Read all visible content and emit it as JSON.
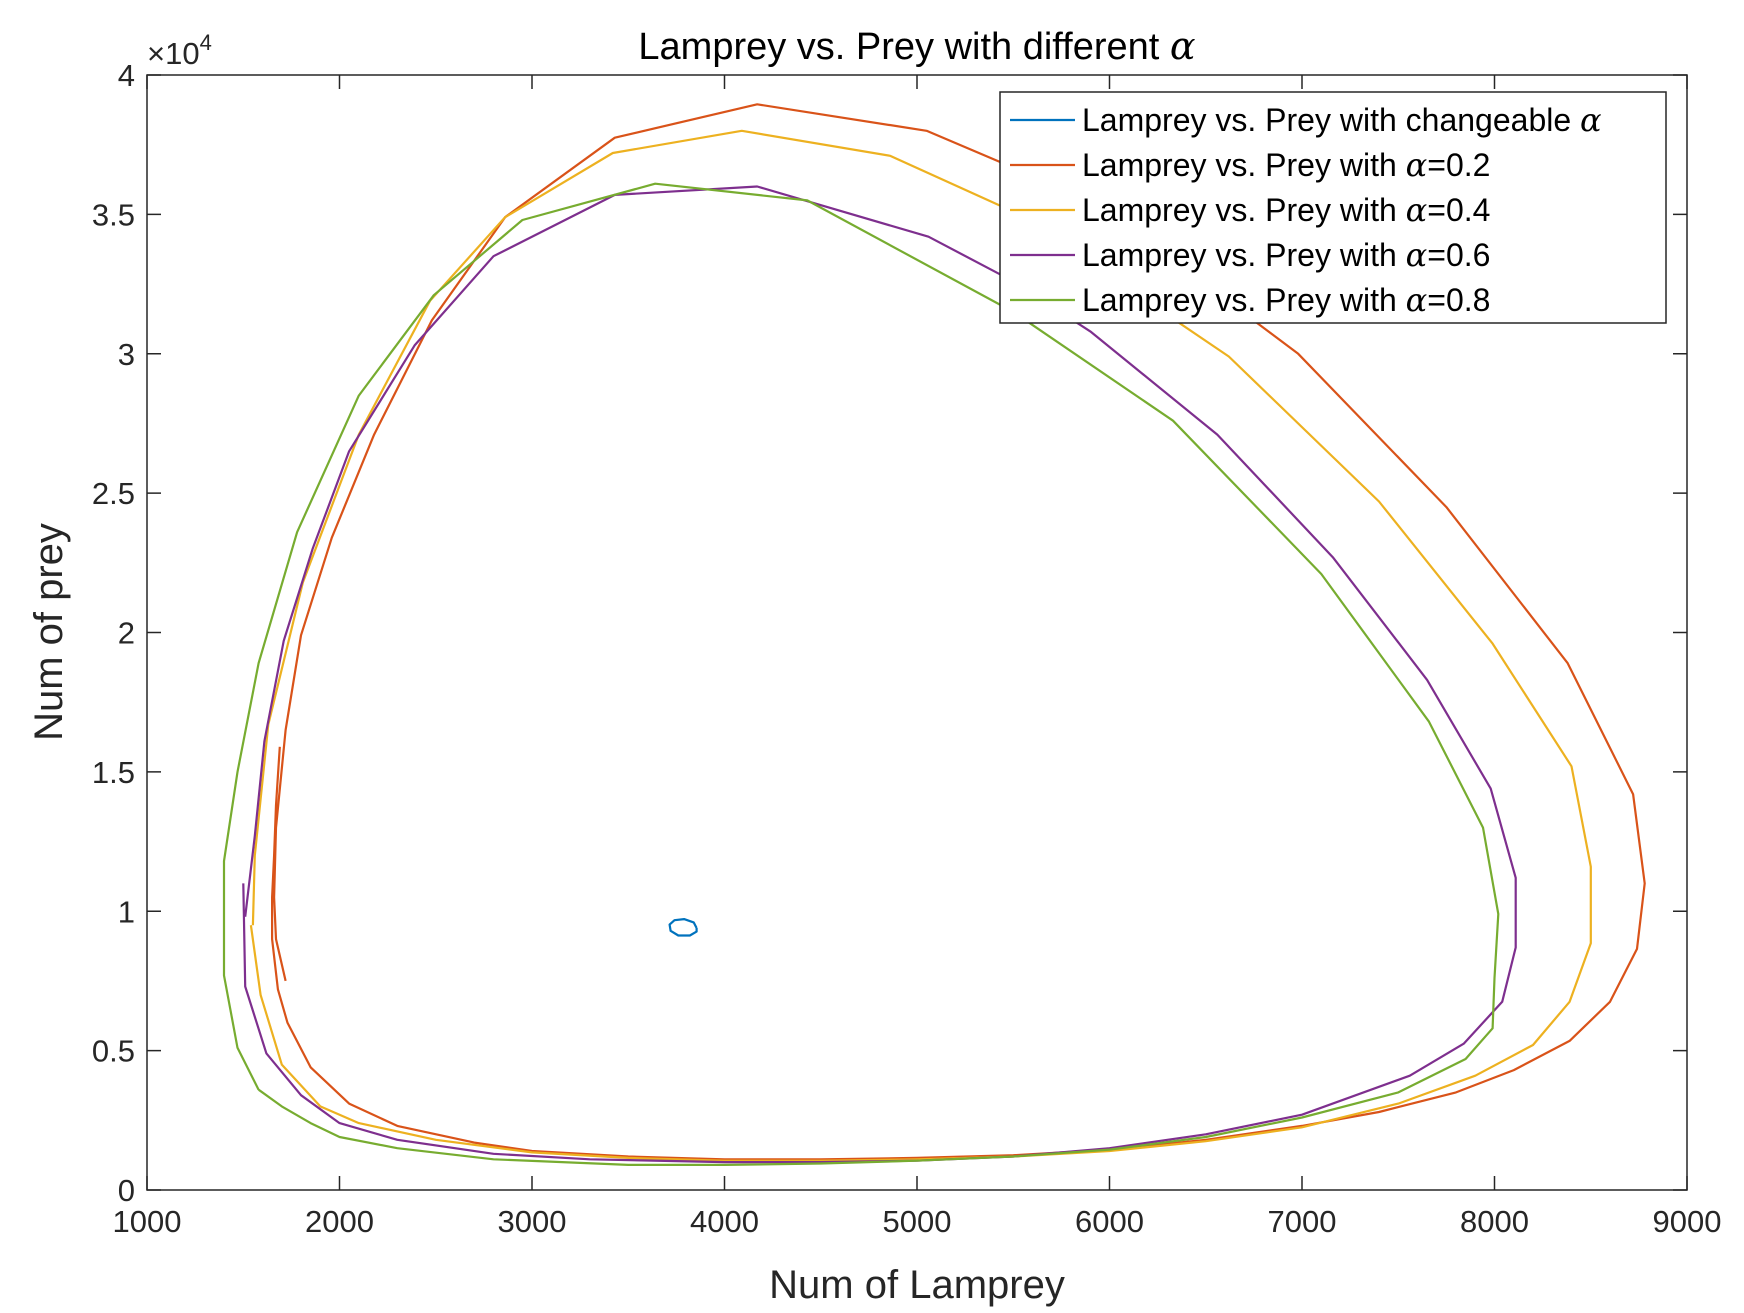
{
  "chart_data": {
    "type": "line",
    "title": "Lamprey vs. Prey with different α",
    "title_parts": {
      "text": "Lamprey vs. Prey with different ",
      "symbol": "α"
    },
    "xlabel": "Num of Lamprey",
    "ylabel": "Num of prey",
    "xlim": [
      1000,
      9000
    ],
    "ylim": [
      0,
      40000
    ],
    "y_exponent_label": {
      "prefix": "×10",
      "power": "4"
    },
    "xticks": [
      1000,
      2000,
      3000,
      4000,
      5000,
      6000,
      7000,
      8000,
      9000
    ],
    "xtick_labels": [
      "1000",
      "2000",
      "3000",
      "4000",
      "5000",
      "6000",
      "7000",
      "8000",
      "9000"
    ],
    "yticks": [
      0,
      5000,
      10000,
      15000,
      20000,
      25000,
      30000,
      35000,
      40000
    ],
    "ytick_labels": [
      "0",
      "0.5",
      "1",
      "1.5",
      "2",
      "2.5",
      "3",
      "3.5",
      "4"
    ],
    "grid": false,
    "legend_position": "top-right",
    "series": [
      {
        "name": "Lamprey vs. Prey with changeable α",
        "label_text": "Lamprey vs. Prey with changeable ",
        "label_symbol": "α",
        "label_suffix": "",
        "color": "#0072BD",
        "points": [
          [
            3855,
            9400
          ],
          [
            3840,
            9600
          ],
          [
            3790,
            9720
          ],
          [
            3740,
            9680
          ],
          [
            3715,
            9520
          ],
          [
            3720,
            9300
          ],
          [
            3760,
            9130
          ],
          [
            3820,
            9130
          ],
          [
            3855,
            9270
          ],
          [
            3855,
            9400
          ]
        ]
      },
      {
        "name": "Lamprey vs. Prey with α=0.2",
        "label_text": "Lamprey vs. Prey with ",
        "label_symbol": "α",
        "label_suffix": "=0.2",
        "color": "#D95319",
        "points": [
          [
            1690,
            15900
          ],
          [
            1670,
            13800
          ],
          [
            1660,
            12000
          ],
          [
            1650,
            10500
          ],
          [
            1650,
            9000
          ],
          [
            1680,
            7200
          ],
          [
            1730,
            6000
          ],
          [
            1850,
            4400
          ],
          [
            2050,
            3100
          ],
          [
            2300,
            2300
          ],
          [
            2700,
            1700
          ],
          [
            3000,
            1400
          ],
          [
            3500,
            1200
          ],
          [
            4000,
            1100
          ],
          [
            4500,
            1100
          ],
          [
            5000,
            1150
          ],
          [
            5500,
            1250
          ],
          [
            6000,
            1450
          ],
          [
            6500,
            1800
          ],
          [
            7000,
            2300
          ],
          [
            7400,
            2800
          ],
          [
            7800,
            3500
          ],
          [
            8100,
            4300
          ],
          [
            8390,
            5350
          ],
          [
            8600,
            6750
          ],
          [
            8740,
            8650
          ],
          [
            8780,
            11000
          ],
          [
            8720,
            14200
          ],
          [
            8380,
            18900
          ],
          [
            7750,
            24500
          ],
          [
            6980,
            30000
          ],
          [
            6400,
            33000
          ],
          [
            5900,
            35500
          ],
          [
            5050,
            38000
          ],
          [
            4170,
            38950
          ],
          [
            3430,
            37750
          ],
          [
            2860,
            34900
          ],
          [
            2480,
            31200
          ],
          [
            2180,
            27100
          ],
          [
            1960,
            23400
          ],
          [
            1800,
            19900
          ],
          [
            1720,
            16500
          ],
          [
            1670,
            13000
          ],
          [
            1660,
            10500
          ],
          [
            1670,
            9000
          ],
          [
            1720,
            7500
          ]
        ]
      },
      {
        "name": "Lamprey vs. Prey with α=0.4",
        "label_text": "Lamprey vs. Prey with ",
        "label_symbol": "α",
        "label_suffix": "=0.4",
        "color": "#EDB120",
        "points": [
          [
            1540,
            9500
          ],
          [
            1590,
            7000
          ],
          [
            1700,
            4500
          ],
          [
            1900,
            3000
          ],
          [
            2100,
            2400
          ],
          [
            2500,
            1800
          ],
          [
            3000,
            1350
          ],
          [
            3500,
            1150
          ],
          [
            4000,
            1050
          ],
          [
            4500,
            1050
          ],
          [
            5000,
            1100
          ],
          [
            5500,
            1200
          ],
          [
            6000,
            1400
          ],
          [
            6500,
            1750
          ],
          [
            7000,
            2250
          ],
          [
            7500,
            3100
          ],
          [
            7900,
            4100
          ],
          [
            8200,
            5200
          ],
          [
            8390,
            6750
          ],
          [
            8500,
            8850
          ],
          [
            8500,
            11600
          ],
          [
            8400,
            15200
          ],
          [
            7990,
            19600
          ],
          [
            7400,
            24700
          ],
          [
            6620,
            29900
          ],
          [
            6000,
            32800
          ],
          [
            5500,
            35100
          ],
          [
            4860,
            37100
          ],
          [
            4090,
            38000
          ],
          [
            3420,
            37200
          ],
          [
            2860,
            34900
          ],
          [
            2470,
            31900
          ],
          [
            2100,
            27100
          ],
          [
            1810,
            21800
          ],
          [
            1630,
            16700
          ],
          [
            1560,
            12000
          ],
          [
            1550,
            9500
          ]
        ]
      },
      {
        "name": "Lamprey vs. Prey with α=0.6",
        "label_text": "Lamprey vs. Prey with ",
        "label_symbol": "α",
        "label_suffix": "=0.6",
        "color": "#7E2F8E",
        "points": [
          [
            1500,
            11000
          ],
          [
            1510,
            7300
          ],
          [
            1620,
            4900
          ],
          [
            1800,
            3400
          ],
          [
            2000,
            2400
          ],
          [
            2300,
            1800
          ],
          [
            2800,
            1300
          ],
          [
            3300,
            1100
          ],
          [
            4000,
            1000
          ],
          [
            4500,
            1000
          ],
          [
            5000,
            1050
          ],
          [
            5500,
            1200
          ],
          [
            6000,
            1500
          ],
          [
            6500,
            2000
          ],
          [
            7000,
            2700
          ],
          [
            7560,
            4100
          ],
          [
            7840,
            5250
          ],
          [
            8040,
            6750
          ],
          [
            8110,
            8700
          ],
          [
            8110,
            11200
          ],
          [
            7980,
            14400
          ],
          [
            7650,
            18300
          ],
          [
            7160,
            22700
          ],
          [
            6560,
            27100
          ],
          [
            5900,
            30800
          ],
          [
            5500,
            32600
          ],
          [
            5060,
            34200
          ],
          [
            4170,
            36000
          ],
          [
            3430,
            35700
          ],
          [
            2800,
            33500
          ],
          [
            2390,
            30300
          ],
          [
            2050,
            26500
          ],
          [
            1860,
            23000
          ],
          [
            1710,
            19700
          ],
          [
            1610,
            16100
          ],
          [
            1560,
            12700
          ],
          [
            1510,
            9800
          ]
        ]
      },
      {
        "name": "Lamprey vs. Prey with α=0.8",
        "label_text": "Lamprey vs. Prey with ",
        "label_symbol": "α",
        "label_suffix": "=0.8",
        "color": "#77AC30",
        "points": [
          [
            1580,
            3600
          ],
          [
            1700,
            3000
          ],
          [
            1850,
            2400
          ],
          [
            2000,
            1900
          ],
          [
            2300,
            1500
          ],
          [
            2800,
            1100
          ],
          [
            3500,
            900
          ],
          [
            4000,
            900
          ],
          [
            4500,
            950
          ],
          [
            5000,
            1050
          ],
          [
            5500,
            1200
          ],
          [
            6000,
            1450
          ],
          [
            6500,
            1900
          ],
          [
            7000,
            2600
          ],
          [
            7500,
            3500
          ],
          [
            7850,
            4700
          ],
          [
            7990,
            5800
          ],
          [
            8000,
            7600
          ],
          [
            8020,
            9900
          ],
          [
            7940,
            13000
          ],
          [
            7660,
            16800
          ],
          [
            7100,
            22100
          ],
          [
            6330,
            27600
          ],
          [
            5500,
            31500
          ],
          [
            4430,
            35500
          ],
          [
            3640,
            36100
          ],
          [
            2950,
            34800
          ],
          [
            2490,
            32100
          ],
          [
            2100,
            28500
          ],
          [
            1780,
            23600
          ],
          [
            1580,
            18900
          ],
          [
            1470,
            15000
          ],
          [
            1400,
            11800
          ],
          [
            1400,
            7700
          ],
          [
            1470,
            5100
          ],
          [
            1580,
            3600
          ]
        ]
      }
    ]
  }
}
